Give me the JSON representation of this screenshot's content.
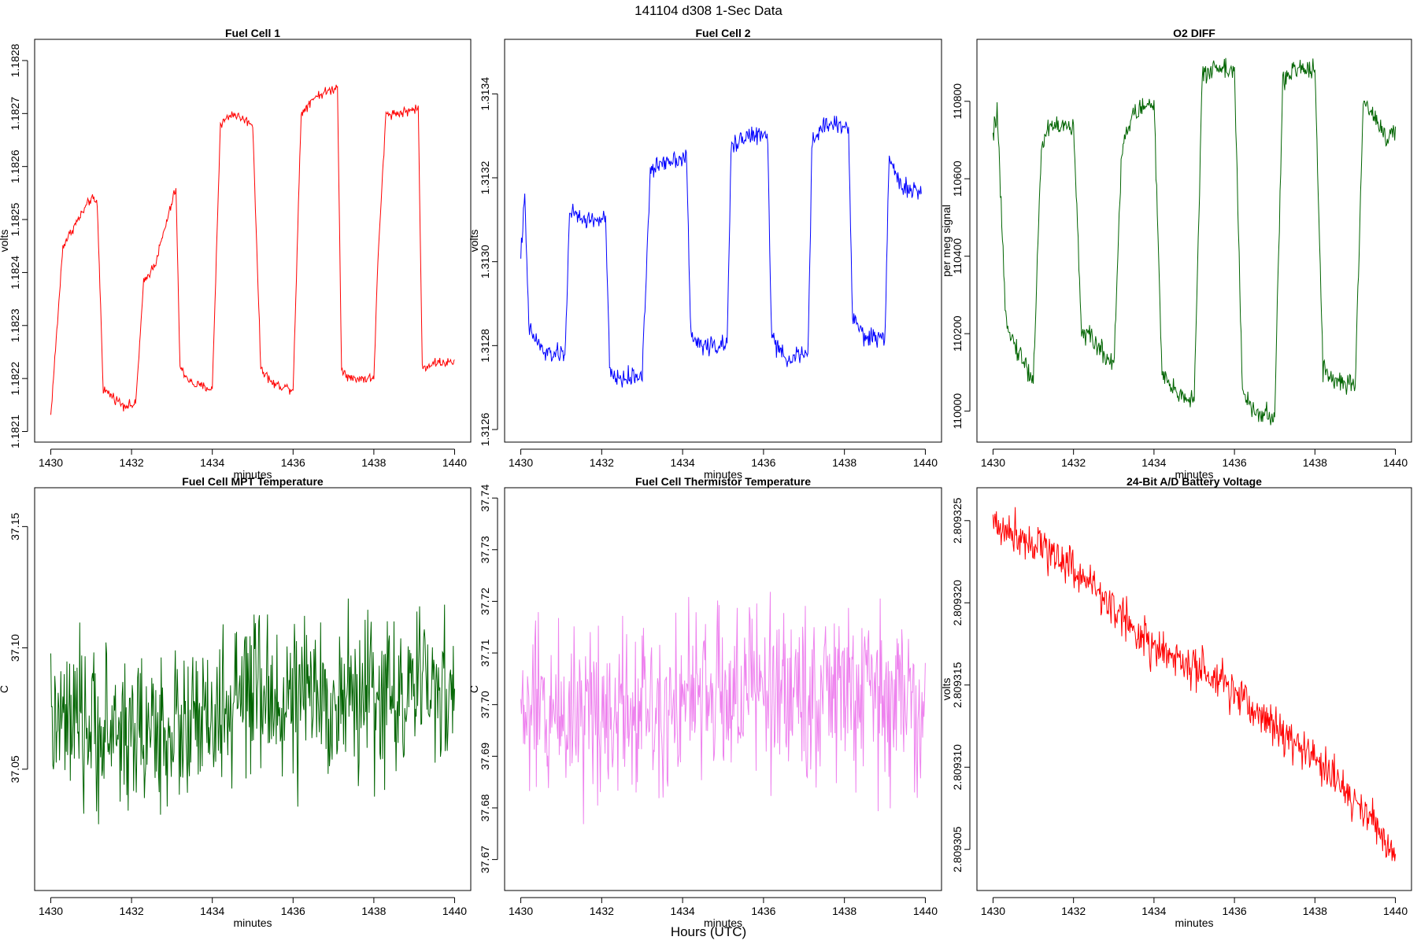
{
  "figure": {
    "title": "141104   d308   1-Sec Data",
    "xlabel": "Hours (UTC)"
  },
  "chart_data": [
    {
      "type": "line",
      "title": "Fuel Cell 1",
      "xlabel": "minutes",
      "ylabel": "volts",
      "xlim": [
        1429.6,
        1440.4
      ],
      "ylim": [
        1.18208,
        1.18284
      ],
      "xticks": [
        1430,
        1432,
        1434,
        1436,
        1438,
        1440
      ],
      "yticks": [
        "1.1821",
        "1.1822",
        "1.1823",
        "1.1824",
        "1.1825",
        "1.1826",
        "1.1827",
        "1.1828"
      ],
      "series": [
        {
          "color": "#ff0000",
          "x": [
            1430.0,
            1430.3,
            1430.6,
            1431.0,
            1431.15,
            1431.3,
            1431.8,
            1432.1,
            1432.3,
            1432.6,
            1433.1,
            1433.2,
            1433.5,
            1434.0,
            1434.2,
            1434.5,
            1435.0,
            1435.2,
            1435.5,
            1436.0,
            1436.2,
            1436.5,
            1437.1,
            1437.2,
            1437.4,
            1438.0,
            1438.1,
            1438.3,
            1438.6,
            1439.1,
            1439.2,
            1439.5,
            1440.0
          ],
          "y": [
            1.18213,
            1.18245,
            1.18249,
            1.18254,
            1.18253,
            1.18218,
            1.18215,
            1.18215,
            1.18238,
            1.18242,
            1.18256,
            1.18222,
            1.18219,
            1.18218,
            1.18268,
            1.1827,
            1.18268,
            1.18222,
            1.18219,
            1.18218,
            1.1827,
            1.18273,
            1.18275,
            1.18222,
            1.1822,
            1.1822,
            1.18242,
            1.1827,
            1.1827,
            1.18271,
            1.18222,
            1.18223,
            1.18223
          ],
          "noise": 4.5e-06
        }
      ]
    },
    {
      "type": "line",
      "title": "Fuel Cell 2",
      "xlabel": "minutes",
      "ylabel": "volts",
      "xlim": [
        1429.6,
        1440.4
      ],
      "ylim": [
        1.31257,
        1.31353
      ],
      "xticks": [
        1430,
        1432,
        1434,
        1436,
        1438,
        1440
      ],
      "yticks": [
        "1.3126",
        "1.3128",
        "1.3130",
        "1.3132",
        "1.3134"
      ],
      "series": [
        {
          "color": "#0000ff",
          "x": [
            1430.0,
            1430.1,
            1430.2,
            1430.6,
            1431.1,
            1431.2,
            1431.5,
            1432.1,
            1432.2,
            1432.5,
            1433.0,
            1433.2,
            1433.5,
            1434.1,
            1434.2,
            1434.5,
            1435.1,
            1435.2,
            1435.5,
            1436.1,
            1436.2,
            1436.5,
            1437.1,
            1437.2,
            1437.5,
            1438.1,
            1438.2,
            1438.5,
            1439.0,
            1439.1,
            1439.4,
            1439.9
          ],
          "y": [
            1.31302,
            1.31315,
            1.31284,
            1.31278,
            1.31278,
            1.31312,
            1.3131,
            1.3131,
            1.31273,
            1.31272,
            1.31273,
            1.31321,
            1.31324,
            1.31325,
            1.31282,
            1.3128,
            1.3128,
            1.31327,
            1.3133,
            1.3133,
            1.31282,
            1.31277,
            1.31278,
            1.31328,
            1.31333,
            1.31332,
            1.31287,
            1.31282,
            1.31282,
            1.31325,
            1.31318,
            1.31316
          ],
          "noise": 1.1e-05
        }
      ]
    },
    {
      "type": "line",
      "title": "O2 DIFF",
      "xlabel": "minutes",
      "ylabel": "per meg signal",
      "xlim": [
        1429.6,
        1440.4
      ],
      "ylim": [
        109920,
        110960
      ],
      "xticks": [
        1430,
        1432,
        1434,
        1436,
        1438,
        1440
      ],
      "yticks": [
        "110000",
        "110200",
        "110400",
        "110600",
        "110800"
      ],
      "series": [
        {
          "color": "#006400",
          "x": [
            1430.0,
            1430.1,
            1430.3,
            1430.5,
            1431.0,
            1431.2,
            1431.4,
            1432.0,
            1432.2,
            1432.5,
            1433.0,
            1433.2,
            1433.5,
            1434.0,
            1434.2,
            1434.5,
            1435.0,
            1435.2,
            1435.5,
            1436.0,
            1436.2,
            1436.5,
            1437.0,
            1437.2,
            1437.5,
            1438.0,
            1438.2,
            1438.5,
            1439.0,
            1439.2,
            1439.5,
            1439.8,
            1440.0
          ],
          "y": [
            110700,
            110780,
            110260,
            110180,
            110080,
            110680,
            110740,
            110730,
            110210,
            110180,
            110120,
            110680,
            110770,
            110800,
            110090,
            110050,
            110030,
            110860,
            110890,
            110880,
            110040,
            110000,
            109980,
            110850,
            110880,
            110890,
            110110,
            110080,
            110060,
            110800,
            110760,
            110700,
            110720
          ],
          "noise": 14
        }
      ]
    },
    {
      "type": "line",
      "title": "Fuel Cell MPT Temperature",
      "xlabel": "minutes",
      "ylabel": "C",
      "xlim": [
        1429.6,
        1440.4
      ],
      "ylim": [
        37.0,
        37.166
      ],
      "xticks": [
        1430,
        1432,
        1434,
        1436,
        1438,
        1440
      ],
      "yticks": [
        "37.05",
        "37.10",
        "37.15"
      ],
      "series": [
        {
          "color": "#006400",
          "x": [
            1430.0,
            1432.0,
            1434.0,
            1434.8,
            1436.0,
            1438.0,
            1440.0
          ],
          "y": [
            37.068,
            37.065,
            37.068,
            37.08,
            37.078,
            37.08,
            37.083
          ],
          "noise": 0.016
        }
      ]
    },
    {
      "type": "line",
      "title": "Fuel Cell Thermistor Temperature",
      "xlabel": "minutes",
      "ylabel": "C",
      "xlim": [
        1429.6,
        1440.4
      ],
      "ylim": [
        37.664,
        37.742
      ],
      "xticks": [
        1430,
        1432,
        1434,
        1436,
        1438,
        1440
      ],
      "yticks": [
        "37.67",
        "37.68",
        "37.69",
        "37.70",
        "37.71",
        "37.72",
        "37.73",
        "37.74"
      ],
      "series": [
        {
          "color": "#ee82ee",
          "x": [
            1430.0,
            1432.0,
            1434.0,
            1436.0,
            1438.0,
            1440.0
          ],
          "y": [
            37.698,
            37.7,
            37.701,
            37.703,
            37.702,
            37.7
          ],
          "noise": 0.0085
        }
      ]
    },
    {
      "type": "line",
      "title": "24-Bit A/D Battery Voltage",
      "xlabel": "minutes",
      "ylabel": "volts",
      "xlim": [
        1429.6,
        1440.4
      ],
      "ylim": [
        2.8093025,
        2.809327
      ],
      "xticks": [
        1430,
        1432,
        1434,
        1436,
        1438,
        1440
      ],
      "yticks": [
        "2.809305",
        "2.809310",
        "2.809315",
        "2.809320",
        "2.809325"
      ],
      "series": [
        {
          "color": "#ff0000",
          "x": [
            1430.0,
            1431.0,
            1432.0,
            1433.0,
            1434.0,
            1435.0,
            1436.0,
            1437.0,
            1438.0,
            1439.0,
            1440.0
          ],
          "y": [
            2.8093248,
            2.8093238,
            2.8093222,
            2.8093197,
            2.8093172,
            2.809316,
            2.8093145,
            2.8093125,
            2.8093105,
            2.809308,
            2.8093048
          ],
          "noise": 6.5e-07
        }
      ]
    }
  ]
}
